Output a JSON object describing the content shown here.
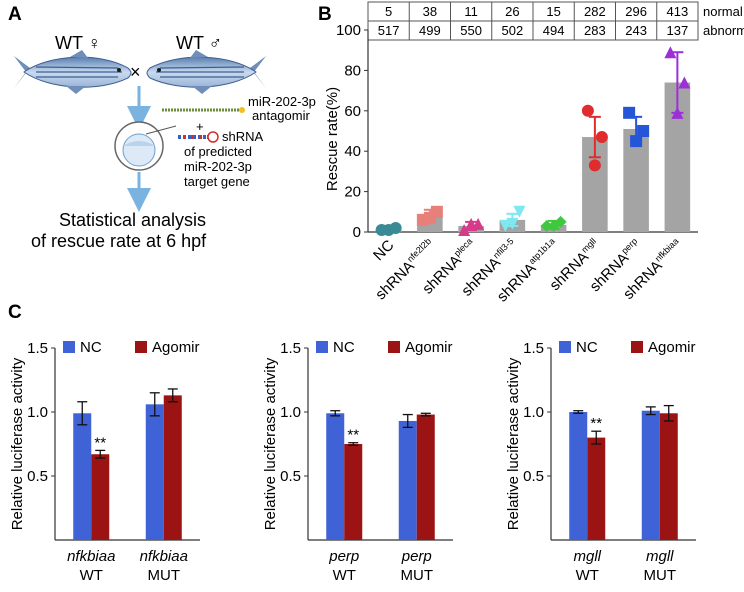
{
  "panels": {
    "a": "A",
    "b": "B",
    "c": "C"
  },
  "panel_a": {
    "wt_female": "WT ♀",
    "wt_male": "WT ♂",
    "cross": "×",
    "antagomir_line1": "miR-202-3p",
    "antagomir_line2": "antagomir",
    "plus": "+",
    "shrna_line1": "shRNA",
    "shrna_line2": "of predicted",
    "shrna_line3": "miR-202-3p",
    "shrna_line4": "target gene",
    "result_line1": "Statistical analysis",
    "result_line2": "of rescue rate at 6 hpf"
  },
  "chart_data": [
    {
      "type": "bar",
      "ylabel": "Rescue rate(%)",
      "ylim": [
        0,
        100
      ],
      "yticks": [
        0,
        20,
        40,
        60,
        80,
        100
      ],
      "categories": [
        {
          "base": "NC",
          "sup": ""
        },
        {
          "base": "shRNA",
          "sup": "nfe2l2b"
        },
        {
          "base": "shRNA",
          "sup": "pleca"
        },
        {
          "base": "shRNA",
          "sup": "nfil3-5"
        },
        {
          "base": "shRNA",
          "sup": "atp1b1a"
        },
        {
          "base": "shRNA",
          "sup": "mgll"
        },
        {
          "base": "shRNA",
          "sup": "perp"
        },
        {
          "base": "shRNA",
          "sup": "nfkbiaa"
        }
      ],
      "values": [
        1.5,
        8,
        3,
        6,
        3.5,
        47,
        51,
        74
      ],
      "errors": [
        1.5,
        3,
        2,
        3,
        2,
        10,
        6,
        15
      ],
      "points": [
        [
          1,
          2,
          1
        ],
        [
          6,
          10,
          7
        ],
        [
          1,
          4,
          4
        ],
        [
          3,
          10,
          4
        ],
        [
          3,
          5,
          3
        ],
        [
          60,
          47,
          33
        ],
        [
          59,
          50,
          45
        ],
        [
          89,
          74,
          59
        ]
      ],
      "marker_colors": [
        "#3a8a96",
        "#e8807a",
        "#d63a8a",
        "#7ee8f0",
        "#3fc83f",
        "#e02c2c",
        "#2656d8",
        "#9c2fd8"
      ],
      "markers": [
        "circle",
        "square",
        "triangle",
        "triangle-down",
        "diamond",
        "circle",
        "square",
        "triangle"
      ],
      "table": {
        "normal_label": "normal",
        "abnormal_label": "abnormal",
        "normal": [
          "5",
          "38",
          "11",
          "26",
          "15",
          "282",
          "296",
          "413"
        ],
        "abnormal": [
          "517",
          "499",
          "550",
          "502",
          "494",
          "283",
          "243",
          "137"
        ]
      }
    },
    {
      "type": "bar",
      "ylabel": "Relative luciferase activity",
      "ylim": [
        0,
        1.5
      ],
      "yticks": [
        "0.5",
        "1.0",
        "1.5"
      ],
      "categories": [
        {
          "gene": "nfkbiaa",
          "type": "WT"
        },
        {
          "gene": "nfkbiaa",
          "type": "MUT"
        }
      ],
      "series": [
        {
          "name": "NC",
          "values": [
            0.99,
            1.06
          ],
          "errors": [
            0.09,
            0.09
          ]
        },
        {
          "name": "Agomir",
          "values": [
            0.67,
            1.13
          ],
          "errors": [
            0.03,
            0.05
          ]
        }
      ],
      "annotations": [
        {
          "text": "**",
          "category": 0,
          "series": 1
        }
      ]
    },
    {
      "type": "bar",
      "ylabel": "Relative luciferase activity",
      "ylim": [
        0,
        1.5
      ],
      "yticks": [
        "0.5",
        "1.0",
        "1.5"
      ],
      "categories": [
        {
          "gene": "perp",
          "type": "WT"
        },
        {
          "gene": "perp",
          "type": "MUT"
        }
      ],
      "series": [
        {
          "name": "NC",
          "values": [
            0.99,
            0.93
          ],
          "errors": [
            0.02,
            0.05
          ]
        },
        {
          "name": "Agomir",
          "values": [
            0.75,
            0.98
          ],
          "errors": [
            0.01,
            0.01
          ]
        }
      ],
      "annotations": [
        {
          "text": "**",
          "category": 0,
          "series": 1
        }
      ]
    },
    {
      "type": "bar",
      "ylabel": "Relative luciferase activity",
      "ylim": [
        0,
        1.5
      ],
      "yticks": [
        "0.5",
        "1.0",
        "1.5"
      ],
      "categories": [
        {
          "gene": "mgll",
          "type": "WT"
        },
        {
          "gene": "mgll",
          "type": "MUT"
        }
      ],
      "series": [
        {
          "name": "NC",
          "values": [
            1.0,
            1.01
          ],
          "errors": [
            0.01,
            0.03
          ]
        },
        {
          "name": "Agomir",
          "values": [
            0.8,
            0.99
          ],
          "errors": [
            0.05,
            0.06
          ]
        }
      ],
      "annotations": [
        {
          "text": "**",
          "category": 0,
          "series": 1
        }
      ]
    }
  ],
  "colors": {
    "nc": "#3f63d6",
    "agomir": "#9b1313",
    "bar_gray": "#a4a4a4",
    "arrow": "#7bb3e0"
  }
}
